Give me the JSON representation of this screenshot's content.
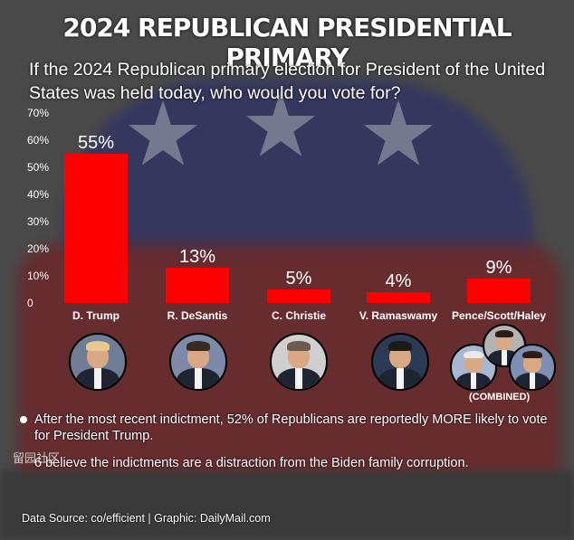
{
  "header": {
    "title": "2024 REPUBLICAN PRESIDENTIAL PRIMARY",
    "subtitle": "If the 2024 Republican primary election for President of the United States was held today, who would you vote for?"
  },
  "chart_data": {
    "type": "bar",
    "categories": [
      "D. Trump",
      "R. DeSantis",
      "C. Christie",
      "V. Ramaswamy",
      "Pence/Scott/Haley"
    ],
    "values": [
      55,
      13,
      5,
      4,
      9
    ],
    "value_labels": [
      "55%",
      "13%",
      "5%",
      "4%",
      "9%"
    ],
    "y_ticks": [
      0,
      10,
      20,
      30,
      40,
      50,
      60,
      70
    ],
    "y_tick_labels": [
      "0",
      "10%",
      "20%",
      "30%",
      "40%",
      "50%",
      "60%",
      "70%"
    ],
    "ylim": [
      0,
      70
    ],
    "bar_color": "#ff0000",
    "grid": false,
    "annotation": "(COMBINED)"
  },
  "candidates": [
    {
      "name": "trump",
      "hair_color": "#e7c98f",
      "bg": "#6f7e96"
    },
    {
      "name": "desantis",
      "hair_color": "#3a2a20",
      "bg": "#7d8aa8"
    },
    {
      "name": "christie",
      "hair_color": "#6b5a4e",
      "bg": "#cfcfcf"
    },
    {
      "name": "ramaswamy",
      "hair_color": "#1b1b1b",
      "bg": "#2d3a55"
    },
    {
      "name": "pence",
      "hair_color": "#e9e9e9",
      "bg": "#a8b7d0"
    },
    {
      "name": "scott",
      "hair_color": "#2a1c14",
      "bg": "#b3b3b3"
    },
    {
      "name": "haley",
      "hair_color": "#2b1d15",
      "bg": "#7f8fb3"
    }
  ],
  "bullets": [
    "After the most recent indictment, 52% of Republicans are reportedly MORE likely to vote for President Trump.",
    "believe the indictments are a distraction from the Biden family corruption."
  ],
  "bullet2_prefix": "6",
  "watermark": "留园社区",
  "source": "Data Source: co/efficient  |  Graphic: DailyMail.com"
}
